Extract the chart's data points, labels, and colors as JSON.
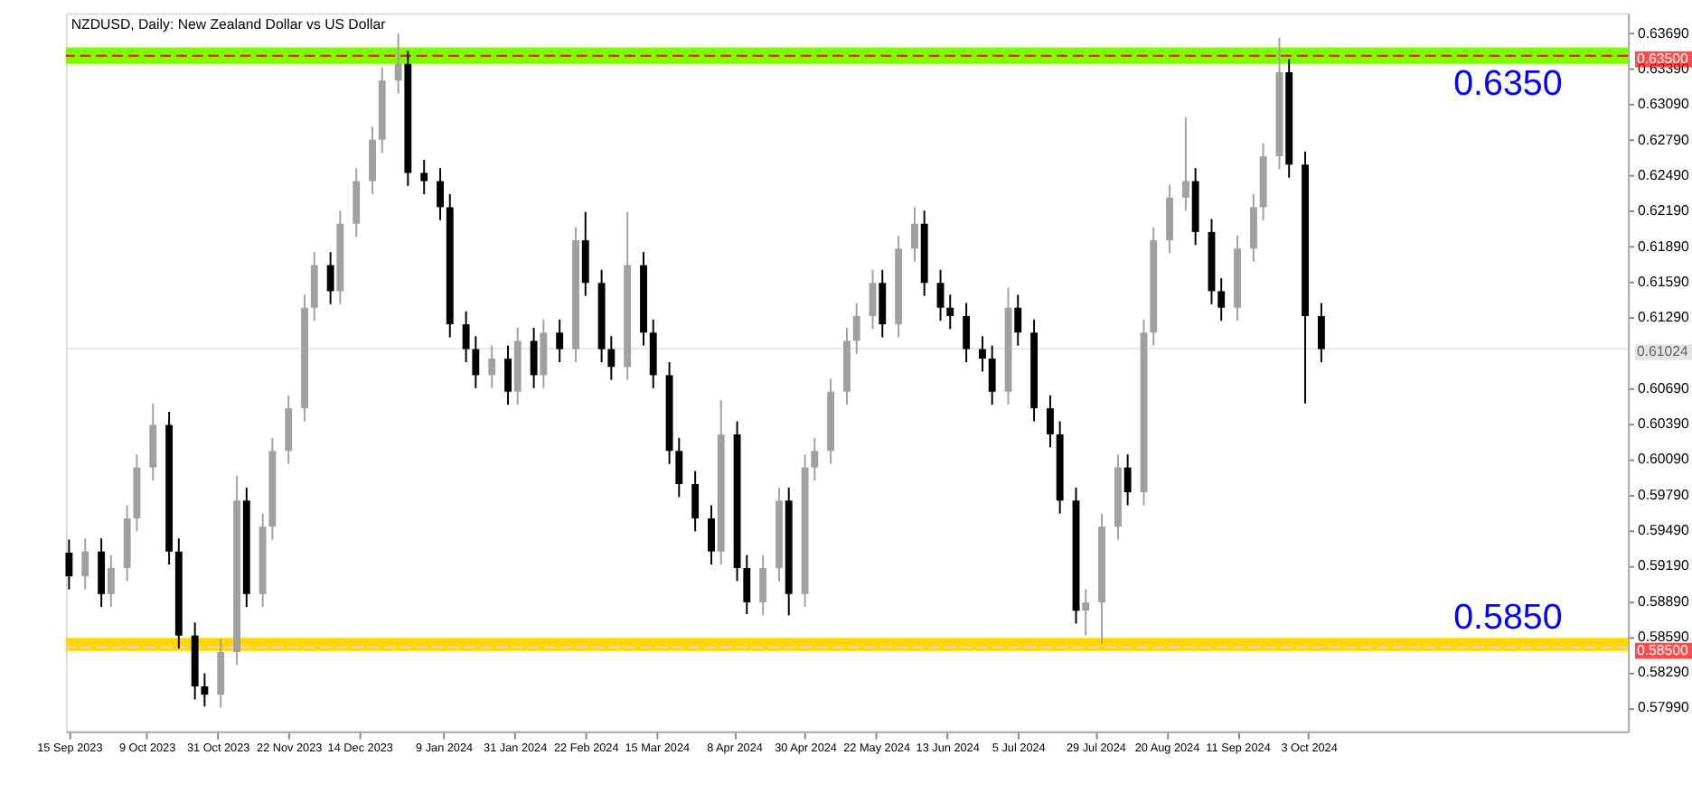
{
  "chart_data": {
    "type": "candlestick",
    "title": "NZDUSD, Daily:  New Zealand Dollar vs US Dollar",
    "x": [
      "2023-09-15",
      "2023-09-20",
      "2023-09-25",
      "2023-09-28",
      "2023-10-03",
      "2023-10-06",
      "2023-10-11",
      "2023-10-16",
      "2023-10-19",
      "2023-10-24",
      "2023-10-27",
      "2023-11-01",
      "2023-11-06",
      "2023-11-09",
      "2023-11-14",
      "2023-11-17",
      "2023-11-22",
      "2023-11-27",
      "2023-11-30",
      "2023-12-05",
      "2023-12-08",
      "2023-12-13",
      "2023-12-18",
      "2023-12-21",
      "2023-12-26",
      "2023-12-29",
      "2024-01-03",
      "2024-01-08",
      "2024-01-11",
      "2024-01-16",
      "2024-01-19",
      "2024-01-24",
      "2024-01-29",
      "2024-02-01",
      "2024-02-06",
      "2024-02-09",
      "2024-02-14",
      "2024-02-19",
      "2024-02-22",
      "2024-02-27",
      "2024-03-01",
      "2024-03-06",
      "2024-03-11",
      "2024-03-14",
      "2024-03-19",
      "2024-03-22",
      "2024-03-27",
      "2024-04-01",
      "2024-04-04",
      "2024-04-09",
      "2024-04-12",
      "2024-04-17",
      "2024-04-22",
      "2024-04-25",
      "2024-04-30",
      "2024-05-03",
      "2024-05-08",
      "2024-05-13",
      "2024-05-16",
      "2024-05-21",
      "2024-05-24",
      "2024-05-29",
      "2024-06-03",
      "2024-06-06",
      "2024-06-11",
      "2024-06-14",
      "2024-06-19",
      "2024-06-24",
      "2024-06-27",
      "2024-07-02",
      "2024-07-05",
      "2024-07-10",
      "2024-07-15",
      "2024-07-18",
      "2024-07-23",
      "2024-07-26",
      "2024-07-31",
      "2024-08-05",
      "2024-08-08",
      "2024-08-13",
      "2024-08-16",
      "2024-08-21",
      "2024-08-26",
      "2024-08-29",
      "2024-09-03",
      "2024-09-06",
      "2024-09-11",
      "2024-09-16",
      "2024-09-19",
      "2024-09-24",
      "2024-09-27",
      "2024-10-02",
      "2024-10-07"
    ],
    "ohlc": [
      [
        0.593,
        0.5941,
        0.5899,
        0.591
      ],
      [
        0.591,
        0.5942,
        0.5899,
        0.5931
      ],
      [
        0.5931,
        0.5942,
        0.5884,
        0.5895
      ],
      [
        0.5895,
        0.5928,
        0.5884,
        0.5917
      ],
      [
        0.5917,
        0.597,
        0.5906,
        0.5959
      ],
      [
        0.5959,
        0.6013,
        0.5948,
        0.6002
      ],
      [
        0.6002,
        0.6056,
        0.5991,
        0.6038
      ],
      [
        0.6038,
        0.6049,
        0.592,
        0.5931
      ],
      [
        0.5931,
        0.5942,
        0.5849,
        0.586
      ],
      [
        0.586,
        0.5871,
        0.5806,
        0.5817
      ],
      [
        0.5817,
        0.5828,
        0.58,
        0.581
      ],
      [
        0.581,
        0.5857,
        0.5799,
        0.5846
      ],
      [
        0.5846,
        0.5995,
        0.5835,
        0.5974
      ],
      [
        0.5974,
        0.5985,
        0.5884,
        0.5895
      ],
      [
        0.5895,
        0.5963,
        0.5884,
        0.5952
      ],
      [
        0.5952,
        0.6027,
        0.5941,
        0.6016
      ],
      [
        0.6016,
        0.6063,
        0.6005,
        0.6052
      ],
      [
        0.6052,
        0.6148,
        0.6041,
        0.6137
      ],
      [
        0.6137,
        0.6184,
        0.6126,
        0.6173
      ],
      [
        0.6173,
        0.6184,
        0.614,
        0.6151
      ],
      [
        0.6151,
        0.6219,
        0.614,
        0.6208
      ],
      [
        0.6208,
        0.6255,
        0.6197,
        0.6244
      ],
      [
        0.6244,
        0.629,
        0.6233,
        0.6279
      ],
      [
        0.6279,
        0.634,
        0.6268,
        0.6329
      ],
      [
        0.6329,
        0.6369,
        0.6318,
        0.6343
      ],
      [
        0.6343,
        0.6354,
        0.624,
        0.6251
      ],
      [
        0.6251,
        0.6262,
        0.6233,
        0.6244
      ],
      [
        0.6244,
        0.6255,
        0.6211,
        0.6222
      ],
      [
        0.6222,
        0.6233,
        0.6112,
        0.6123
      ],
      [
        0.6123,
        0.6134,
        0.6091,
        0.6102
      ],
      [
        0.6102,
        0.6113,
        0.6069,
        0.608
      ],
      [
        0.608,
        0.6105,
        0.6069,
        0.6094
      ],
      [
        0.6094,
        0.6105,
        0.6055,
        0.6066
      ],
      [
        0.6066,
        0.612,
        0.6055,
        0.6109
      ],
      [
        0.6109,
        0.612,
        0.6069,
        0.608
      ],
      [
        0.608,
        0.6127,
        0.6069,
        0.6116
      ],
      [
        0.6116,
        0.6127,
        0.6091,
        0.6102
      ],
      [
        0.6102,
        0.6205,
        0.6091,
        0.6194
      ],
      [
        0.6194,
        0.6218,
        0.6147,
        0.6158
      ],
      [
        0.6158,
        0.6169,
        0.6091,
        0.6102
      ],
      [
        0.6102,
        0.6113,
        0.6076,
        0.6087
      ],
      [
        0.6087,
        0.6218,
        0.6076,
        0.6173
      ],
      [
        0.6173,
        0.6184,
        0.6105,
        0.6116
      ],
      [
        0.6116,
        0.6127,
        0.6069,
        0.608
      ],
      [
        0.608,
        0.6091,
        0.6005,
        0.6016
      ],
      [
        0.6016,
        0.6027,
        0.5977,
        0.5988
      ],
      [
        0.5988,
        0.5999,
        0.5948,
        0.5959
      ],
      [
        0.5959,
        0.597,
        0.592,
        0.5931
      ],
      [
        0.5931,
        0.6059,
        0.592,
        0.603
      ],
      [
        0.603,
        0.6041,
        0.5906,
        0.5917
      ],
      [
        0.5917,
        0.5928,
        0.5878,
        0.5888
      ],
      [
        0.5888,
        0.5928,
        0.5877,
        0.5917
      ],
      [
        0.5917,
        0.5985,
        0.5906,
        0.5974
      ],
      [
        0.5974,
        0.5985,
        0.5877,
        0.5895
      ],
      [
        0.5895,
        0.6013,
        0.5884,
        0.6002
      ],
      [
        0.6002,
        0.6027,
        0.5991,
        0.6016
      ],
      [
        0.6016,
        0.6077,
        0.6005,
        0.6066
      ],
      [
        0.6066,
        0.612,
        0.6055,
        0.6109
      ],
      [
        0.6109,
        0.6141,
        0.6098,
        0.613
      ],
      [
        0.613,
        0.6169,
        0.6119,
        0.6158
      ],
      [
        0.6158,
        0.6169,
        0.6112,
        0.6123
      ],
      [
        0.6123,
        0.6198,
        0.6112,
        0.6187
      ],
      [
        0.6187,
        0.6222,
        0.6176,
        0.6208
      ],
      [
        0.6208,
        0.6219,
        0.6147,
        0.6158
      ],
      [
        0.6158,
        0.6169,
        0.6126,
        0.6137
      ],
      [
        0.6137,
        0.6148,
        0.6119,
        0.613
      ],
      [
        0.613,
        0.6141,
        0.6091,
        0.6102
      ],
      [
        0.6102,
        0.6113,
        0.6083,
        0.6094
      ],
      [
        0.6094,
        0.6105,
        0.6055,
        0.6066
      ],
      [
        0.6066,
        0.6154,
        0.6055,
        0.6137
      ],
      [
        0.6137,
        0.6148,
        0.6105,
        0.6116
      ],
      [
        0.6116,
        0.6127,
        0.6041,
        0.6052
      ],
      [
        0.6052,
        0.6063,
        0.6019,
        0.603
      ],
      [
        0.603,
        0.6041,
        0.5963,
        0.5974
      ],
      [
        0.5974,
        0.5985,
        0.587,
        0.5881
      ],
      [
        0.5881,
        0.5899,
        0.586,
        0.5888
      ],
      [
        0.5888,
        0.5963,
        0.5853,
        0.5952
      ],
      [
        0.5952,
        0.6013,
        0.5941,
        0.6002
      ],
      [
        0.6002,
        0.6013,
        0.597,
        0.5981
      ],
      [
        0.5981,
        0.6127,
        0.597,
        0.6116
      ],
      [
        0.6116,
        0.6205,
        0.6105,
        0.6194
      ],
      [
        0.6194,
        0.6241,
        0.6183,
        0.623
      ],
      [
        0.623,
        0.6298,
        0.6219,
        0.6244
      ],
      [
        0.6244,
        0.6255,
        0.619,
        0.6201
      ],
      [
        0.6201,
        0.6212,
        0.614,
        0.6151
      ],
      [
        0.6151,
        0.6162,
        0.6126,
        0.6137
      ],
      [
        0.6137,
        0.6198,
        0.6126,
        0.6187
      ],
      [
        0.6187,
        0.6233,
        0.6176,
        0.6222
      ],
      [
        0.6222,
        0.6276,
        0.6211,
        0.6265
      ],
      [
        0.6265,
        0.6365,
        0.6254,
        0.6336
      ],
      [
        0.6336,
        0.6347,
        0.6247,
        0.6258
      ],
      [
        0.6258,
        0.6269,
        0.6056,
        0.613
      ],
      [
        0.613,
        0.6141,
        0.6091,
        0.6102
      ]
    ],
    "bands": [
      {
        "axis": "y",
        "from": 0.6343,
        "to": 0.6357,
        "color": "#7cfc00"
      },
      {
        "axis": "y",
        "from": 0.5847,
        "to": 0.5858,
        "color": "#ffd700"
      }
    ],
    "xlim": [
      "2023-09-14",
      "2025-01-10"
    ],
    "xticks": [
      {
        "value": "2023-09-15",
        "label": "15 Sep 2023"
      },
      {
        "value": "2023-10-09",
        "label": "9 Oct 2023"
      },
      {
        "value": "2023-10-31",
        "label": "31 Oct 2023"
      },
      {
        "value": "2023-11-22",
        "label": "22 Nov 2023"
      },
      {
        "value": "2023-12-14",
        "label": "14 Dec 2023"
      },
      {
        "value": "2024-01-09",
        "label": "9 Jan 2024"
      },
      {
        "value": "2024-01-31",
        "label": "31 Jan 2024"
      },
      {
        "value": "2024-02-22",
        "label": "22 Feb 2024"
      },
      {
        "value": "2024-03-15",
        "label": "15 Mar 2024"
      },
      {
        "value": "2024-04-08",
        "label": "8 Apr 2024"
      },
      {
        "value": "2024-04-30",
        "label": "30 Apr 2024"
      },
      {
        "value": "2024-05-22",
        "label": "22 May 2024"
      },
      {
        "value": "2024-06-13",
        "label": "13 Jun 2024"
      },
      {
        "value": "2024-07-05",
        "label": "5 Jul 2024"
      },
      {
        "value": "2024-07-29",
        "label": "29 Jul 2024"
      },
      {
        "value": "2024-08-20",
        "label": "20 Aug 2024"
      },
      {
        "value": "2024-09-11",
        "label": "11 Sep 2024"
      },
      {
        "value": "2024-10-03",
        "label": "3 Oct 2024"
      }
    ],
    "ylim": [
      0.5779,
      0.6386
    ],
    "yticks": [
      {
        "value": 0.6369,
        "label": "0.63690"
      },
      {
        "value": 0.6339,
        "label": "0.63390"
      },
      {
        "value": 0.6309,
        "label": "0.63090"
      },
      {
        "value": 0.6279,
        "label": "0.62790"
      },
      {
        "value": 0.6249,
        "label": "0.62490"
      },
      {
        "value": 0.6219,
        "label": "0.62190"
      },
      {
        "value": 0.6189,
        "label": "0.61890"
      },
      {
        "value": 0.6159,
        "label": "0.61590"
      },
      {
        "value": 0.6129,
        "label": "0.61290"
      },
      {
        "value": 0.6069,
        "label": "0.60690"
      },
      {
        "value": 0.6039,
        "label": "0.60390"
      },
      {
        "value": 0.6009,
        "label": "0.60090"
      },
      {
        "value": 0.5979,
        "label": "0.59790"
      },
      {
        "value": 0.5949,
        "label": "0.59490"
      },
      {
        "value": 0.5919,
        "label": "0.59190"
      },
      {
        "value": 0.5889,
        "label": "0.58890"
      },
      {
        "value": 0.5859,
        "label": "0.58590"
      },
      {
        "value": 0.5829,
        "label": "0.58290"
      },
      {
        "value": 0.5799,
        "label": "0.57990"
      }
    ],
    "ref_lines": [
      {
        "axis": "y",
        "value": 0.635,
        "label": "0.63500",
        "color": "#ff0000",
        "line_style": "dashed"
      },
      {
        "axis": "y",
        "value": 0.585,
        "label": "0.58500",
        "color": "#ffd0d8",
        "line_style": "dashed"
      },
      {
        "axis": "y",
        "value": 0.61024,
        "label": "0.61024",
        "color": "#e8e8e8",
        "line_style": "solid"
      }
    ],
    "annotations": [
      "0.6350",
      "0.5850"
    ],
    "grid": false
  }
}
